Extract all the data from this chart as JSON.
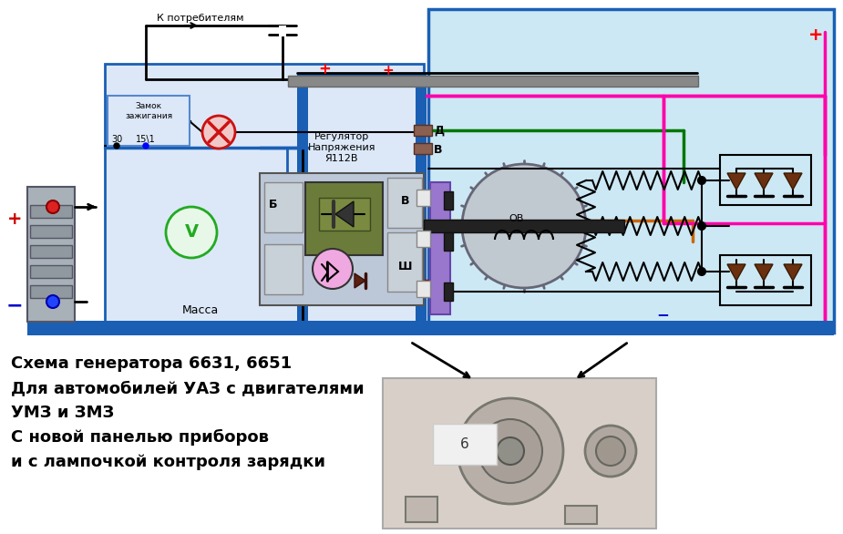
{
  "bg_color": "#ffffff",
  "diagram_bg": "#cce8f4",
  "blue_bus": "#1a5fb4",
  "bottom_bar": "#1a5fb4",
  "title_lines": [
    "Схема генератора 6631, 6651",
    "Для автомобилей УАЗ с двигателями",
    "УМЗ и ЗМЗ",
    "С новой панелью приборов",
    "и с лампочкой контроля зарядки"
  ],
  "title_fontsize": 13,
  "k_potrebitelyam": "К потребителям",
  "massa": "Масса",
  "regulator_label": "Регулятор\nНапряжения\nЯ112В",
  "zamok_label": "Замок\nзажигания",
  "B_label": "В",
  "D_label": "Д",
  "B2_label": "В",
  "Sh_label": "Ш",
  "B_reg": "Б",
  "plus_color": "#ff0000",
  "minus_color": "#0000aa",
  "pink_wire": "#ff00aa",
  "green_wire": "#007700",
  "orange_wire": "#cc6600",
  "dark_red_wire": "#990000",
  "gray_color": "#999999",
  "dark_green_reg": "#6b7c3a",
  "light_gray_reg": "#c0c8d0",
  "purple_conn": "#8877cc",
  "brown_diode": "#6b3010"
}
